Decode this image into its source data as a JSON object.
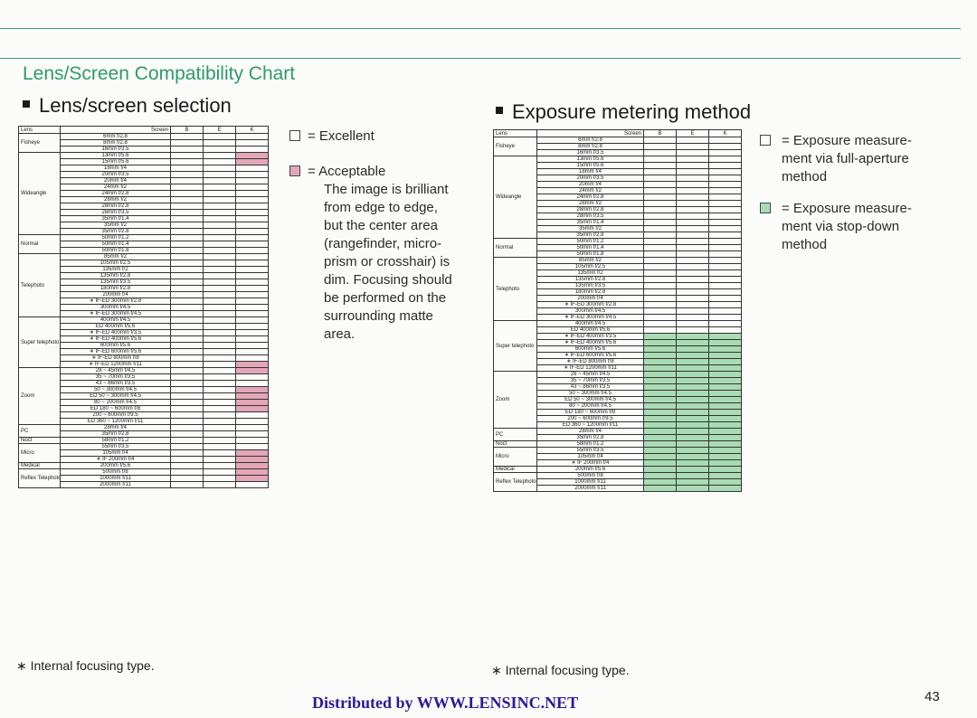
{
  "page_title": "Lens/Screen Compatibility Chart",
  "left_section": "Lens/screen selection",
  "right_section": "Exposure metering method",
  "screen_header": "Screen",
  "lens_header": "Lens",
  "screen_cols": [
    "B",
    "E",
    "K"
  ],
  "groups": [
    {
      "name": "Fisheye",
      "rows": [
        "6mm f/2.8",
        "8mm f/2.8",
        "16mm f/3.5"
      ]
    },
    {
      "name": "Wideangle",
      "rows": [
        "13mm f/5.6",
        "15mm f/5.6",
        "18mm f/4",
        "20mm f/3.5",
        "20mm f/4",
        "24mm f/2",
        "24mm f/2.8",
        "28mm f/2",
        "28mm f/2.8",
        "28mm f/3.5",
        "35mm f/1.4",
        "35mm f/2",
        "35mm f/2.8"
      ]
    },
    {
      "name": "Normal",
      "rows": [
        "50mm f/1.2",
        "50mm f/1.4",
        "50mm f/1.8"
      ]
    },
    {
      "name": "Telephoto",
      "rows": [
        "85mm f/2",
        "105mm f/2.5",
        "135mm f/2",
        "135mm f/2.8",
        "135mm f/3.5",
        "180mm f/2.8",
        "200mm f/4",
        "∗ IF-ED 300mm f/2.8",
        "300mm f/4.5",
        "∗ IF-ED 300mm f/4.5"
      ]
    },
    {
      "name": "Super telephoto",
      "rows": [
        "400mm f/4.5",
        "ED 400mm f/5.6",
        "∗ IF-ED 400mm f/3.5",
        "∗ IF-ED 400mm f/5.6",
        "600mm f/5.6",
        "∗ IF-ED 600mm f/5.6",
        "∗ IF-ED 800mm f/8",
        "∗ IF-ED 1200mm f/11"
      ]
    },
    {
      "name": "Zoom",
      "rows": [
        "28 ~ 45mm f/4.5",
        "35 ~ 70mm f/3.5",
        "43 ~ 86mm f/3.5",
        "50 ~ 300mm f/4.5",
        "ED 50 ~ 300mm f/4.5",
        "80 ~ 200mm f/4.5",
        "ED 180 ~ 600mm f/8",
        "200 ~ 600mm f/9.5",
        "ED 360 ~ 1200mm f/11"
      ]
    },
    {
      "name": "PC",
      "rows": [
        "28mm f/4",
        "35mm f/2.8"
      ]
    },
    {
      "name": "Noct",
      "rows": [
        "58mm f/1.2"
      ]
    },
    {
      "name": "Micro",
      "rows": [
        "55mm f/3.5",
        "105mm f/4",
        "∗ IF 200mm f/4"
      ]
    },
    {
      "name": "Medical",
      "rows": [
        "200mm f/5.6"
      ]
    },
    {
      "name": "Reflex Telephoto",
      "rows": [
        "500mm f/8",
        "1000mm f/11",
        "2000mm f/11"
      ]
    }
  ],
  "left_legend": {
    "excellent": "= Excellent",
    "acceptable": "= Acceptable",
    "desc_lines": [
      "The image is brilliant",
      "from edge to edge,",
      "but the center area",
      "(rangefinder, micro-",
      "prism or crosshair) is",
      "dim. Focusing should",
      "be performed on the",
      "surrounding matte",
      "area."
    ]
  },
  "right_legend": {
    "full_lines": [
      "= Exposure measure-",
      "ment via full-aperture",
      "method"
    ],
    "stop_lines": [
      "= Exposure measure-",
      "ment via stop-down",
      "method"
    ]
  },
  "footnote": "∗ Internal focusing type.",
  "distributed": "Distributed by WWW.LENSINC.NET",
  "page_number": "43",
  "colors": {
    "accent": "#2f9a6a",
    "acceptable": "#e3a6b8",
    "stopdown": "#a9dcb3",
    "distributor": "#2a1a9a"
  }
}
